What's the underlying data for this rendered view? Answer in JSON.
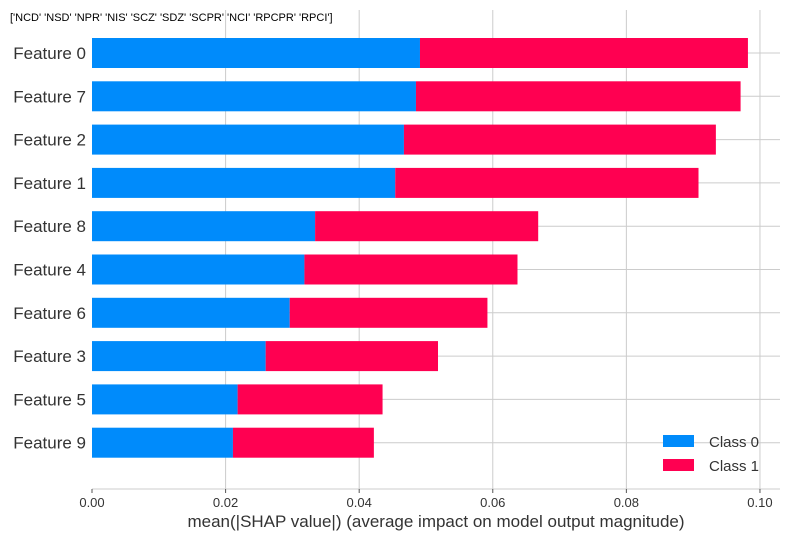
{
  "chart_data": {
    "type": "bar",
    "stacked": true,
    "orientation": "horizontal",
    "title": "['NCD' 'NSD' 'NPR' 'NIS' 'SCZ' 'SDZ' 'SCPR' 'NCI' 'RPCPR' 'RPCI']",
    "xlabel": "mean(|SHAP value|) (average impact on model output magnitude)",
    "ylabel": "",
    "xlim": [
      0,
      0.103
    ],
    "xticks": [
      "0.00",
      "0.02",
      "0.04",
      "0.06",
      "0.08",
      "0.10"
    ],
    "xtick_values": [
      0,
      0.02,
      0.04,
      0.06,
      0.08,
      0.1
    ],
    "grid": true,
    "legend_position": "bottom-right",
    "categories": [
      "Feature 0",
      "Feature 7",
      "Feature 2",
      "Feature 1",
      "Feature 8",
      "Feature 4",
      "Feature 6",
      "Feature 3",
      "Feature 5",
      "Feature 9"
    ],
    "series": [
      {
        "name": "Class 0",
        "color": "#008bfb",
        "values": [
          0.0491,
          0.0485,
          0.0467,
          0.0454,
          0.0334,
          0.0318,
          0.0296,
          0.026,
          0.0218,
          0.0211
        ]
      },
      {
        "name": "Class 1",
        "color": "#ff0051",
        "values": [
          0.0491,
          0.0486,
          0.0467,
          0.0454,
          0.0334,
          0.0319,
          0.0296,
          0.0258,
          0.0217,
          0.0211
        ]
      }
    ]
  }
}
